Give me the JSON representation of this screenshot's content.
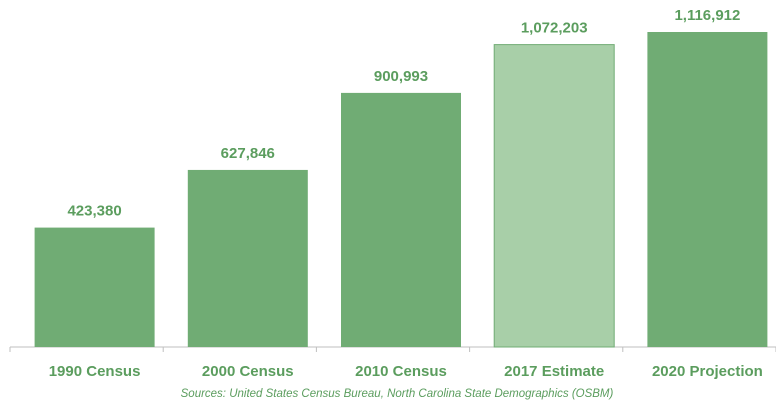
{
  "chart_data": {
    "type": "bar",
    "categories": [
      "1990 Census",
      "2000 Census",
      "2010 Census",
      "2017 Estimate",
      "2020 Projection"
    ],
    "values": [
      423380,
      627846,
      900993,
      1072203,
      1116912
    ],
    "value_labels": [
      "423,380",
      "627,846",
      "900,993",
      "1,072,203",
      "1,116,912"
    ],
    "colors": [
      "#70ac74",
      "#70ac74",
      "#70ac74",
      "#a8cfa8",
      "#70ac74"
    ],
    "annotation": "Sources: United States Census Bureau, North Carolina State Demographics (OSBM)"
  }
}
